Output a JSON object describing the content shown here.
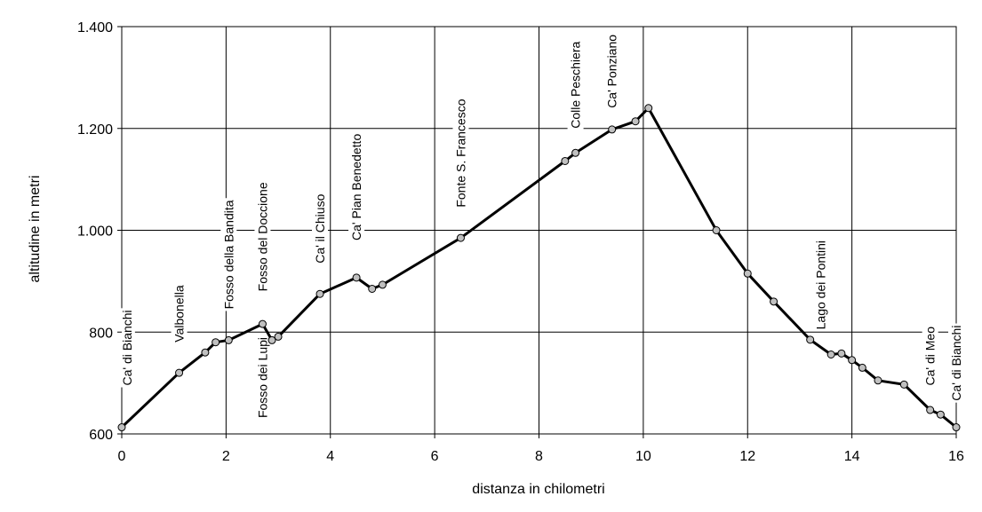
{
  "chart_data": {
    "type": "line",
    "title": "",
    "xlabel": "distanza in chilometri",
    "ylabel": "altitudine  in metri",
    "xlim": [
      0,
      16
    ],
    "ylim": [
      600,
      1400
    ],
    "x_ticks": [
      0,
      2,
      4,
      6,
      8,
      10,
      12,
      14,
      16
    ],
    "x_tick_labels": [
      "0",
      "2",
      "4",
      "6",
      "8",
      "10",
      "12",
      "14",
      "16"
    ],
    "y_ticks": [
      600,
      800,
      1000,
      1200,
      1400
    ],
    "y_tick_labels": [
      "600",
      "800",
      "1.000",
      "1.200",
      "1.400"
    ],
    "grid": true,
    "line_color": "#000000",
    "marker_fill": "#c0c0c0",
    "series": [
      {
        "points": [
          [
            0,
            613
          ],
          [
            1.1,
            720
          ],
          [
            1.6,
            760
          ],
          [
            1.8,
            780
          ],
          [
            2.05,
            784
          ],
          [
            2.7,
            816
          ],
          [
            2.88,
            784
          ],
          [
            3.0,
            791
          ],
          [
            3.8,
            875
          ],
          [
            4.5,
            907
          ],
          [
            4.8,
            885
          ],
          [
            5.0,
            893
          ],
          [
            6.5,
            985
          ],
          [
            8.5,
            1136
          ],
          [
            8.7,
            1152
          ],
          [
            9.4,
            1198
          ],
          [
            9.85,
            1214
          ],
          [
            10.1,
            1240
          ],
          [
            11.4,
            1000
          ],
          [
            12.0,
            915
          ],
          [
            12.5,
            860
          ],
          [
            13.2,
            785
          ],
          [
            13.6,
            756
          ],
          [
            13.8,
            758
          ],
          [
            14.0,
            745
          ],
          [
            14.2,
            730
          ],
          [
            14.5,
            705
          ],
          [
            15.0,
            697
          ],
          [
            15.5,
            647
          ],
          [
            15.7,
            638
          ],
          [
            16.0,
            613
          ]
        ]
      }
    ],
    "annotations": [
      {
        "text": "Ca' di Bianchi",
        "x": 0.1,
        "y": 695,
        "side": "above"
      },
      {
        "text": "Valbonella",
        "x": 1.1,
        "y": 780,
        "side": "above"
      },
      {
        "text": "Fosso della Bandita",
        "x": 2.05,
        "y": 845,
        "side": "above"
      },
      {
        "text": "Fosso del Doccione",
        "x": 2.7,
        "y": 880,
        "side": "above"
      },
      {
        "text": "Fosso dei Lupi",
        "x": 2.7,
        "y": 790,
        "side": "below"
      },
      {
        "text": "Ca' il Chiuso",
        "x": 3.8,
        "y": 935,
        "side": "above"
      },
      {
        "text": "Ca' Pian Benedetto",
        "x": 4.5,
        "y": 980,
        "side": "above"
      },
      {
        "text": "Fonte S. Francesco",
        "x": 6.5,
        "y": 1045,
        "side": "above"
      },
      {
        "text": "Colle Peschiera",
        "x": 8.7,
        "y": 1200,
        "side": "above"
      },
      {
        "text": "Ca' Ponziano",
        "x": 9.4,
        "y": 1240,
        "side": "above"
      },
      {
        "text": "Lago dei Pontini",
        "x": 13.4,
        "y": 805,
        "side": "above"
      },
      {
        "text": "Ca' di Meo",
        "x": 15.5,
        "y": 695,
        "side": "above"
      },
      {
        "text": "Ca' di Bianchi",
        "x": 16.0,
        "y": 665,
        "side": "above"
      }
    ]
  }
}
